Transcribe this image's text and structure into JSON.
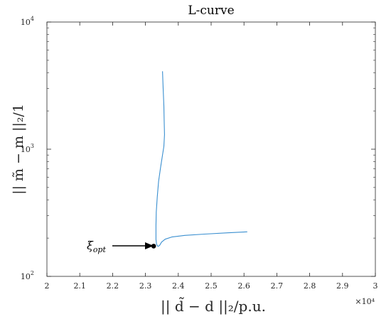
{
  "chart_data": {
    "type": "line",
    "title": "L-curve",
    "xlabel": "|| d̃ − d ||₂/p.u.",
    "ylabel": "|| m̃ − m ||₂/1",
    "x_multiplier_label": "×10⁴",
    "xscale": "linear",
    "yscale": "log",
    "xlim": [
      20000,
      30000
    ],
    "ylim": [
      100,
      10000
    ],
    "x_ticks": [
      20000,
      21000,
      22000,
      23000,
      24000,
      25000,
      26000,
      27000,
      28000,
      29000,
      30000
    ],
    "x_tick_labels": [
      "2",
      "2.1",
      "2.2",
      "2.3",
      "2.4",
      "2.5",
      "2.6",
      "2.7",
      "2.8",
      "2.9",
      "3"
    ],
    "y_ticks": [
      100,
      1000,
      10000
    ],
    "y_tick_labels": [
      {
        "base": "10",
        "exp": "2"
      },
      {
        "base": "10",
        "exp": "3"
      },
      {
        "base": "10",
        "exp": "4"
      }
    ],
    "grid": false,
    "series": [
      {
        "color": "#3a8fd0",
        "x": [
          23520,
          23540,
          23560,
          23570,
          23580,
          23560,
          23520,
          23460,
          23400,
          23360,
          23330,
          23320,
          23320,
          23340,
          23380,
          23430,
          23490,
          23600,
          23800,
          24200,
          24800,
          25500,
          26100
        ],
        "y": [
          4100,
          3000,
          2200,
          1700,
          1300,
          1050,
          900,
          720,
          560,
          420,
          320,
          250,
          195,
          178,
          172,
          175,
          186,
          196,
          204,
          210,
          215,
          220,
          224
        ]
      }
    ],
    "highlight_point": {
      "x": 23250,
      "y": 173,
      "color": "#000000"
    },
    "annotation": {
      "text": "ξopt",
      "base": "ξ",
      "sub": "opt"
    }
  }
}
